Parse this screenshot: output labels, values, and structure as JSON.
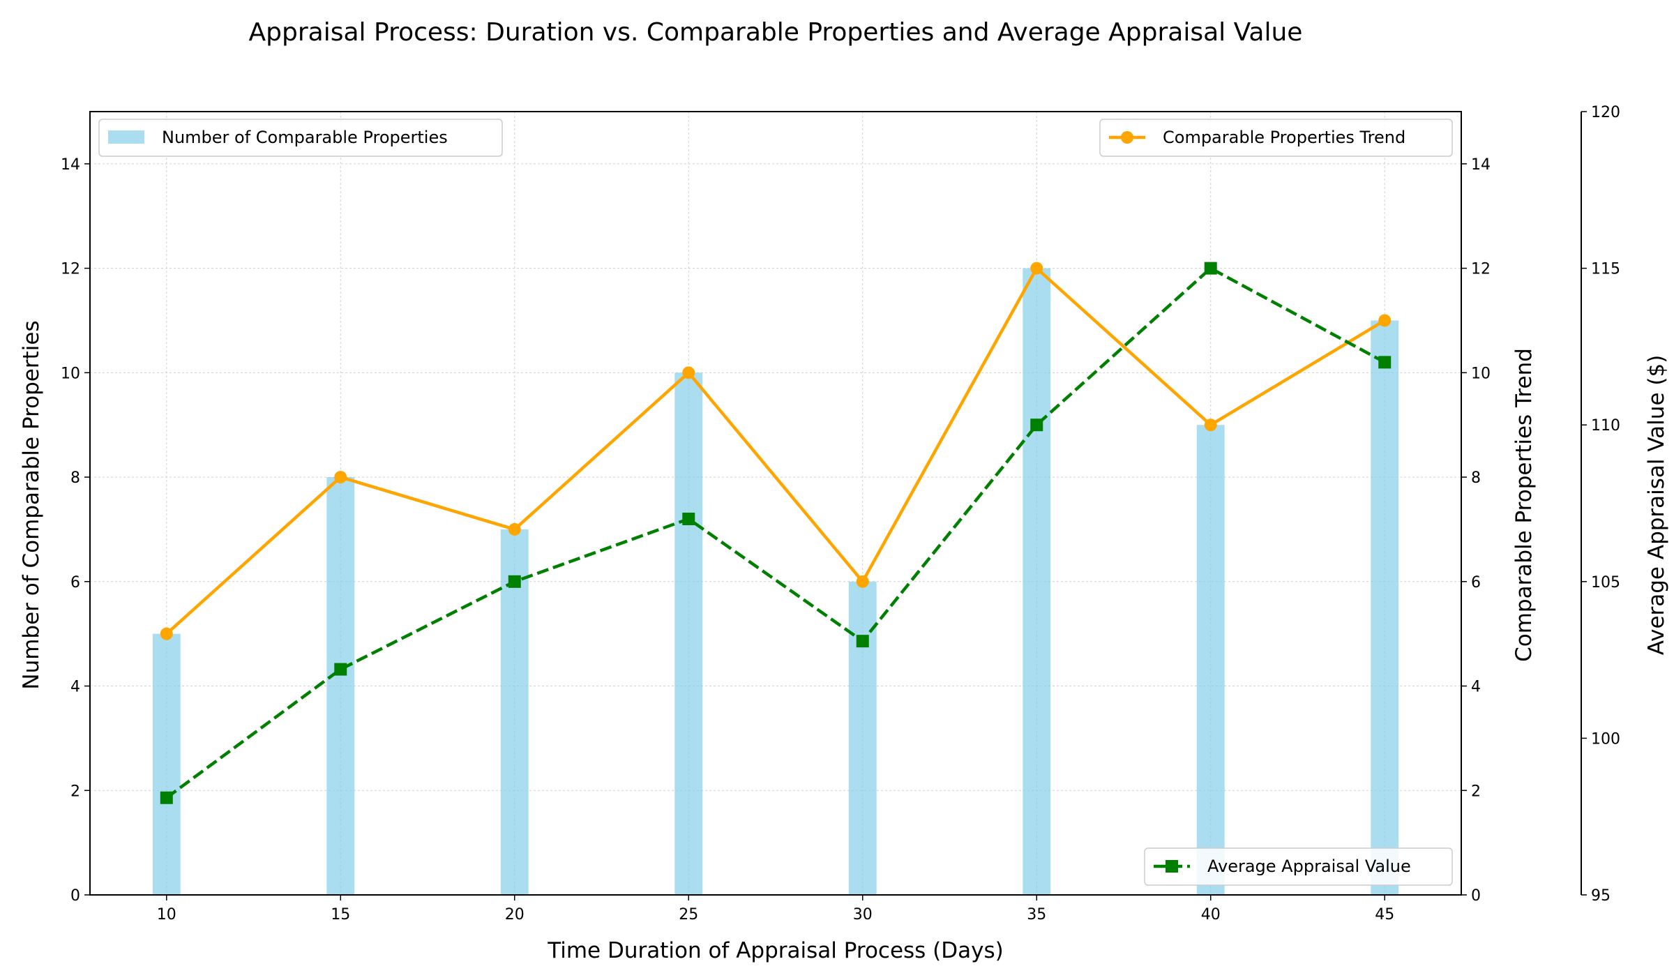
{
  "chart_data": {
    "type": "bar",
    "title": "Appraisal Process: Duration vs. Comparable Properties and Average Appraisal Value",
    "xlabel": "Time Duration of Appraisal Process (Days)",
    "ylabel": "Number of Comparable Properties",
    "ylabel_right": "Comparable Properties Trend",
    "ylabel_far_right": "Average Appraisal Value ($)",
    "x": [
      10,
      15,
      20,
      25,
      30,
      35,
      40,
      45
    ],
    "xlim": [
      7.8,
      47.2
    ],
    "ylim": [
      0,
      15
    ],
    "ylim_right": [
      0,
      15
    ],
    "ylim_far_right": [
      95,
      120
    ],
    "yticks": [
      0,
      2,
      4,
      6,
      8,
      10,
      12,
      14
    ],
    "yticks_far_right": [
      95,
      100,
      105,
      110,
      115,
      120
    ],
    "grid": true,
    "series": [
      {
        "name": "Number of Comparable Properties",
        "kind": "bar",
        "axis": "left",
        "color": "#87ceeb",
        "values": [
          5,
          8,
          7,
          10,
          6,
          12,
          9,
          11
        ],
        "legend_position": "upper-left"
      },
      {
        "name": "Comparable Properties Trend",
        "kind": "line",
        "marker": "circle",
        "axis": "right",
        "color": "#ffa500",
        "values": [
          5,
          8,
          7,
          10,
          6,
          12,
          9,
          11
        ],
        "legend_position": "upper-right"
      },
      {
        "name": "Average Appraisal Value",
        "kind": "dashed-line",
        "marker": "square",
        "axis": "far-right",
        "color": "#008000",
        "values": [
          98.1,
          102.2,
          105.0,
          107.0,
          103.1,
          110.0,
          115.0,
          112.0
        ],
        "legend_position": "lower-right"
      }
    ]
  }
}
